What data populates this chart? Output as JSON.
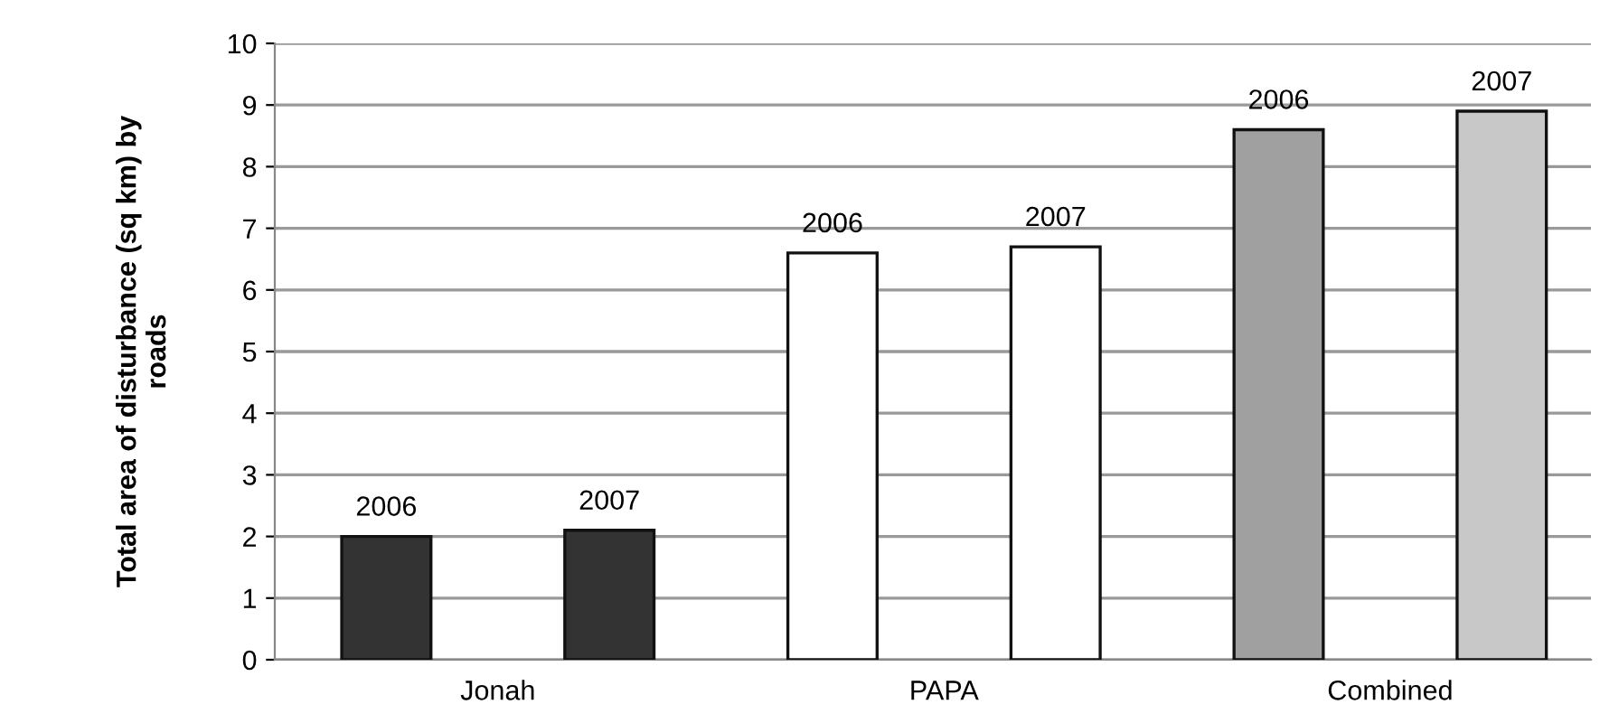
{
  "chart_data": {
    "type": "bar",
    "ylabel": "Total area of disturbance (sq km) by\nroads",
    "categories": [
      "Jonah",
      "PAPA",
      "Combined"
    ],
    "series": [
      {
        "name": "2006",
        "colors": [
          "#333333",
          "#ffffff",
          "#a0a0a0"
        ],
        "values": [
          2.0,
          6.6,
          8.6
        ]
      },
      {
        "name": "2007",
        "colors": [
          "#333333",
          "#ffffff",
          "#c8c8c8"
        ],
        "values": [
          2.1,
          6.7,
          8.9
        ]
      }
    ],
    "ylim": [
      0,
      10
    ],
    "yticks": [
      0,
      1,
      2,
      3,
      4,
      5,
      6,
      7,
      8,
      9,
      10
    ],
    "grid": "y",
    "legend": false
  }
}
